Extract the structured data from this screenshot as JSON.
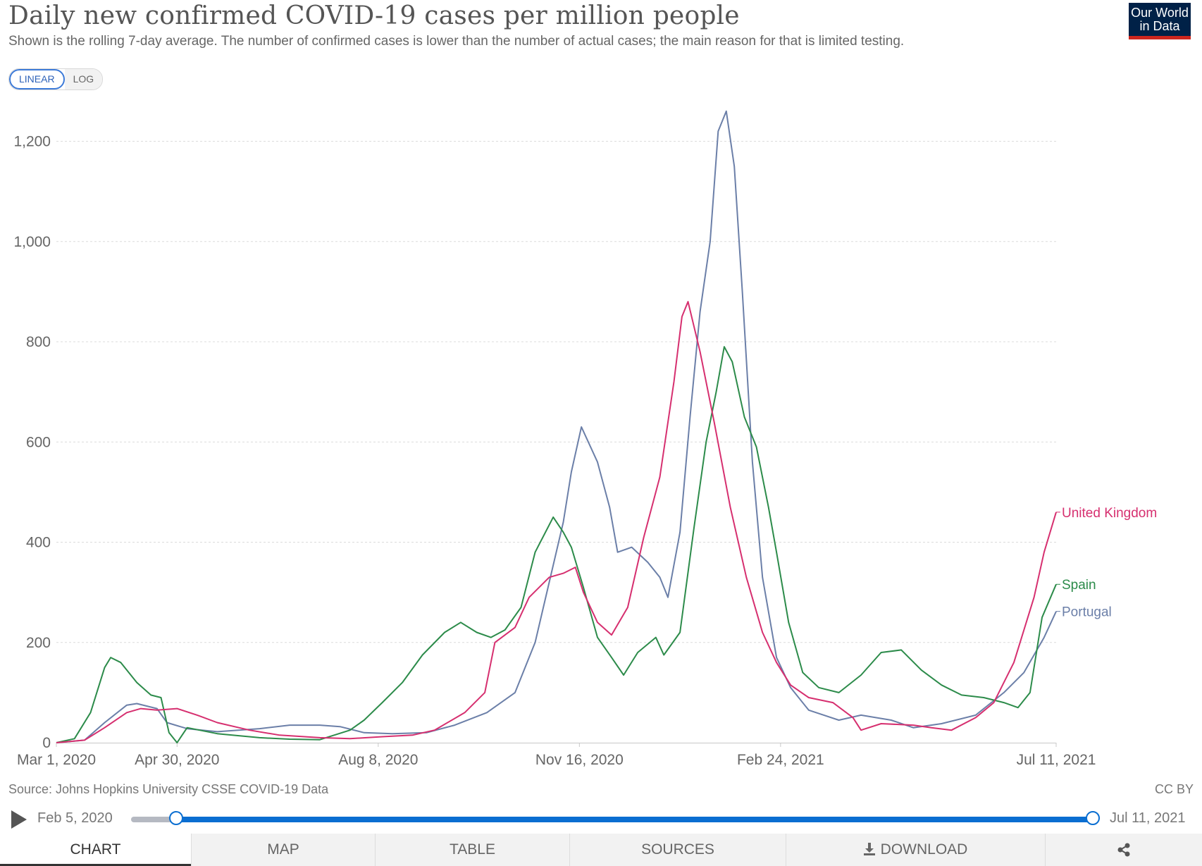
{
  "header": {
    "title": "Daily new confirmed COVID-19 cases per million people",
    "subtitle": "Shown is the rolling 7-day average. The number of confirmed cases is lower than the number of actual cases; the main reason for that is limited testing.",
    "logo_line1": "Our World",
    "logo_line2": "in Data"
  },
  "scale_toggle": {
    "linear": "LINEAR",
    "log": "LOG",
    "selected": "LINEAR"
  },
  "footer": {
    "source": "Source: Johns Hopkins University CSSE COVID-19 Data",
    "license": "CC BY"
  },
  "timeline": {
    "start": "Feb 5, 2020",
    "end": "Jul 11, 2021"
  },
  "tabs": {
    "chart": "CHART",
    "map": "MAP",
    "table": "TABLE",
    "sources": "SOURCES",
    "download": "DOWNLOAD",
    "share_icon": "share-icon",
    "download_icon": "download-icon"
  },
  "chart_data": {
    "type": "line",
    "title": "Daily new confirmed COVID-19 cases per million people",
    "xlabel": "",
    "ylabel": "",
    "x_range": [
      "2020-03-01",
      "2021-07-11"
    ],
    "ylim": [
      0,
      1200
    ],
    "yticks": [
      0,
      200,
      400,
      600,
      800,
      1000,
      1200
    ],
    "ytick_labels": [
      "0",
      "200",
      "400",
      "600",
      "800",
      "1,000",
      "1,200"
    ],
    "xtick_dates": [
      "2020-03-01",
      "2020-04-30",
      "2020-08-08",
      "2020-11-16",
      "2021-02-24",
      "2021-07-11"
    ],
    "xtick_labels": [
      "Mar 1, 2020",
      "Apr 30, 2020",
      "Aug 8, 2020",
      "Nov 16, 2020",
      "Feb 24, 2021",
      "Jul 11, 2021"
    ],
    "grid": "horizontal dashed",
    "legend": "line-end labels",
    "series": [
      {
        "name": "Portugal",
        "color": "#6b7fa8",
        "points": [
          [
            "2020-03-01",
            0
          ],
          [
            "2020-03-15",
            5
          ],
          [
            "2020-03-25",
            40
          ],
          [
            "2020-04-05",
            75
          ],
          [
            "2020-04-10",
            78
          ],
          [
            "2020-04-20",
            68
          ],
          [
            "2020-04-25",
            40
          ],
          [
            "2020-05-05",
            28
          ],
          [
            "2020-05-20",
            22
          ],
          [
            "2020-06-10",
            28
          ],
          [
            "2020-06-25",
            35
          ],
          [
            "2020-07-10",
            35
          ],
          [
            "2020-07-20",
            32
          ],
          [
            "2020-08-01",
            20
          ],
          [
            "2020-08-15",
            18
          ],
          [
            "2020-09-01",
            20
          ],
          [
            "2020-09-15",
            35
          ],
          [
            "2020-10-01",
            60
          ],
          [
            "2020-10-15",
            100
          ],
          [
            "2020-10-25",
            200
          ],
          [
            "2020-11-01",
            320
          ],
          [
            "2020-11-08",
            440
          ],
          [
            "2020-11-12",
            540
          ],
          [
            "2020-11-17",
            630
          ],
          [
            "2020-11-25",
            560
          ],
          [
            "2020-12-01",
            470
          ],
          [
            "2020-12-05",
            380
          ],
          [
            "2020-12-12",
            390
          ],
          [
            "2020-12-20",
            360
          ],
          [
            "2020-12-26",
            330
          ],
          [
            "2020-12-30",
            290
          ],
          [
            "2021-01-05",
            420
          ],
          [
            "2021-01-10",
            650
          ],
          [
            "2021-01-15",
            860
          ],
          [
            "2021-01-20",
            1000
          ],
          [
            "2021-01-24",
            1220
          ],
          [
            "2021-01-28",
            1260
          ],
          [
            "2021-02-01",
            1150
          ],
          [
            "2021-02-05",
            900
          ],
          [
            "2021-02-10",
            560
          ],
          [
            "2021-02-15",
            330
          ],
          [
            "2021-02-22",
            170
          ],
          [
            "2021-03-01",
            110
          ],
          [
            "2021-03-10",
            65
          ],
          [
            "2021-03-25",
            45
          ],
          [
            "2021-04-05",
            55
          ],
          [
            "2021-04-20",
            45
          ],
          [
            "2021-05-01",
            30
          ],
          [
            "2021-05-15",
            38
          ],
          [
            "2021-06-01",
            55
          ],
          [
            "2021-06-15",
            100
          ],
          [
            "2021-06-25",
            140
          ],
          [
            "2021-07-05",
            210
          ],
          [
            "2021-07-11",
            262
          ]
        ]
      },
      {
        "name": "Spain",
        "color": "#2c8b4a",
        "points": [
          [
            "2020-03-01",
            0
          ],
          [
            "2020-03-10",
            8
          ],
          [
            "2020-03-18",
            60
          ],
          [
            "2020-03-25",
            150
          ],
          [
            "2020-03-28",
            170
          ],
          [
            "2020-04-02",
            160
          ],
          [
            "2020-04-10",
            120
          ],
          [
            "2020-04-17",
            95
          ],
          [
            "2020-04-22",
            90
          ],
          [
            "2020-04-26",
            20
          ],
          [
            "2020-04-30",
            0
          ],
          [
            "2020-05-05",
            30
          ],
          [
            "2020-05-20",
            18
          ],
          [
            "2020-06-10",
            10
          ],
          [
            "2020-06-25",
            7
          ],
          [
            "2020-07-10",
            6
          ],
          [
            "2020-07-25",
            25
          ],
          [
            "2020-08-01",
            45
          ],
          [
            "2020-08-10",
            80
          ],
          [
            "2020-08-20",
            120
          ],
          [
            "2020-08-30",
            175
          ],
          [
            "2020-09-10",
            220
          ],
          [
            "2020-09-18",
            240
          ],
          [
            "2020-09-26",
            220
          ],
          [
            "2020-10-03",
            210
          ],
          [
            "2020-10-10",
            225
          ],
          [
            "2020-10-18",
            270
          ],
          [
            "2020-10-25",
            380
          ],
          [
            "2020-11-03",
            450
          ],
          [
            "2020-11-08",
            420
          ],
          [
            "2020-11-12",
            390
          ],
          [
            "2020-11-18",
            310
          ],
          [
            "2020-11-25",
            210
          ],
          [
            "2020-12-02",
            170
          ],
          [
            "2020-12-08",
            135
          ],
          [
            "2020-12-15",
            180
          ],
          [
            "2020-12-24",
            210
          ],
          [
            "2020-12-28",
            175
          ],
          [
            "2021-01-05",
            220
          ],
          [
            "2021-01-12",
            430
          ],
          [
            "2021-01-18",
            600
          ],
          [
            "2021-01-23",
            700
          ],
          [
            "2021-01-27",
            790
          ],
          [
            "2021-01-31",
            760
          ],
          [
            "2021-02-06",
            650
          ],
          [
            "2021-02-12",
            590
          ],
          [
            "2021-02-18",
            470
          ],
          [
            "2021-02-22",
            380
          ],
          [
            "2021-02-28",
            240
          ],
          [
            "2021-03-07",
            140
          ],
          [
            "2021-03-15",
            110
          ],
          [
            "2021-03-25",
            100
          ],
          [
            "2021-04-05",
            135
          ],
          [
            "2021-04-15",
            180
          ],
          [
            "2021-04-25",
            185
          ],
          [
            "2021-05-05",
            145
          ],
          [
            "2021-05-15",
            115
          ],
          [
            "2021-05-25",
            95
          ],
          [
            "2021-06-05",
            90
          ],
          [
            "2021-06-15",
            80
          ],
          [
            "2021-06-22",
            70
          ],
          [
            "2021-06-28",
            100
          ],
          [
            "2021-07-04",
            250
          ],
          [
            "2021-07-11",
            316
          ]
        ]
      },
      {
        "name": "United Kingdom",
        "color": "#d62f6f",
        "points": [
          [
            "2020-03-01",
            0
          ],
          [
            "2020-03-15",
            5
          ],
          [
            "2020-03-25",
            30
          ],
          [
            "2020-04-05",
            60
          ],
          [
            "2020-04-12",
            68
          ],
          [
            "2020-04-20",
            65
          ],
          [
            "2020-04-30",
            68
          ],
          [
            "2020-05-10",
            55
          ],
          [
            "2020-05-20",
            40
          ],
          [
            "2020-06-05",
            25
          ],
          [
            "2020-06-20",
            15
          ],
          [
            "2020-07-10",
            10
          ],
          [
            "2020-07-25",
            8
          ],
          [
            "2020-08-10",
            12
          ],
          [
            "2020-08-25",
            15
          ],
          [
            "2020-09-05",
            25
          ],
          [
            "2020-09-20",
            60
          ],
          [
            "2020-09-30",
            100
          ],
          [
            "2020-10-05",
            200
          ],
          [
            "2020-10-15",
            230
          ],
          [
            "2020-10-22",
            290
          ],
          [
            "2020-11-01",
            330
          ],
          [
            "2020-11-08",
            338
          ],
          [
            "2020-11-14",
            350
          ],
          [
            "2020-11-18",
            300
          ],
          [
            "2020-11-25",
            240
          ],
          [
            "2020-12-02",
            215
          ],
          [
            "2020-12-10",
            270
          ],
          [
            "2020-12-18",
            410
          ],
          [
            "2020-12-26",
            530
          ],
          [
            "2021-01-02",
            720
          ],
          [
            "2021-01-06",
            850
          ],
          [
            "2021-01-09",
            880
          ],
          [
            "2021-01-15",
            780
          ],
          [
            "2021-01-22",
            640
          ],
          [
            "2021-01-30",
            470
          ],
          [
            "2021-02-07",
            330
          ],
          [
            "2021-02-15",
            220
          ],
          [
            "2021-02-22",
            160
          ],
          [
            "2021-03-01",
            115
          ],
          [
            "2021-03-10",
            90
          ],
          [
            "2021-03-22",
            80
          ],
          [
            "2021-04-01",
            50
          ],
          [
            "2021-04-05",
            25
          ],
          [
            "2021-04-15",
            38
          ],
          [
            "2021-05-01",
            35
          ],
          [
            "2021-05-10",
            30
          ],
          [
            "2021-05-20",
            25
          ],
          [
            "2021-06-01",
            50
          ],
          [
            "2021-06-10",
            80
          ],
          [
            "2021-06-20",
            160
          ],
          [
            "2021-06-30",
            290
          ],
          [
            "2021-07-05",
            380
          ],
          [
            "2021-07-11",
            460
          ]
        ]
      }
    ]
  }
}
